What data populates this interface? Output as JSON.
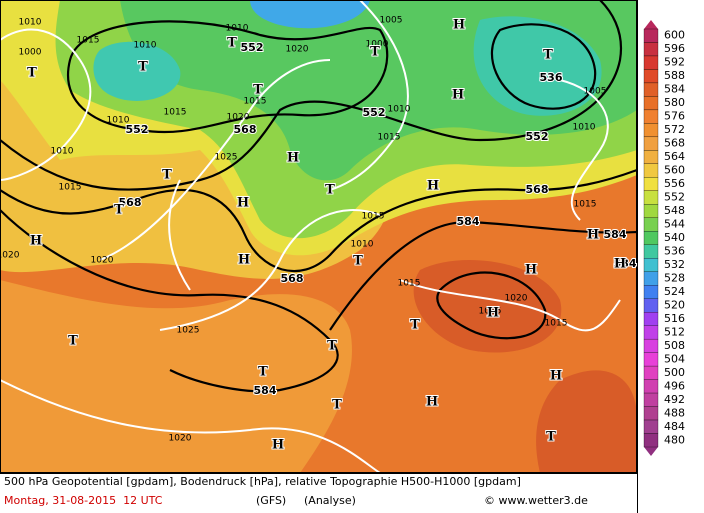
{
  "title": "500 hPa Geopotential [gpdam], Bodendruck [hPa], relative Topographie H500-H1000 [gpdam]",
  "date": "Montag, 31-08-2015  12 UTC",
  "model": "(GFS)",
  "run": "(Analyse)",
  "credit": "© www.wetter3.de",
  "legend": [
    600,
    596,
    592,
    588,
    584,
    580,
    576,
    572,
    568,
    564,
    560,
    556,
    552,
    548,
    544,
    540,
    536,
    532,
    528,
    524,
    520,
    516,
    512,
    508,
    504,
    500,
    496,
    492,
    488,
    484,
    480
  ],
  "map_labels": [
    "552",
    "552",
    "568",
    "552",
    "536",
    "552",
    "568",
    "568",
    "584",
    "568",
    "584",
    "584",
    "584",
    "1010",
    "1000",
    "1015",
    "1010",
    "1010",
    "1020",
    "1000",
    "1005",
    "1010",
    "1015",
    "1020",
    "1015",
    "1010",
    "1025",
    "1010",
    "1015",
    "1020",
    "1015",
    "1010",
    "1015",
    "1015",
    "1020",
    "1015",
    "1015",
    "1025",
    "1020",
    "1005",
    "1010",
    "1015",
    "1020",
    "T",
    "T",
    "T",
    "T",
    "T",
    "T",
    "T",
    "T",
    "T",
    "T",
    "T",
    "T",
    "T",
    "T",
    "T",
    "T",
    "H",
    "H",
    "H",
    "H",
    "H",
    "H",
    "H",
    "H",
    "H",
    "H",
    "H",
    "H",
    "H",
    "H"
  ]
}
